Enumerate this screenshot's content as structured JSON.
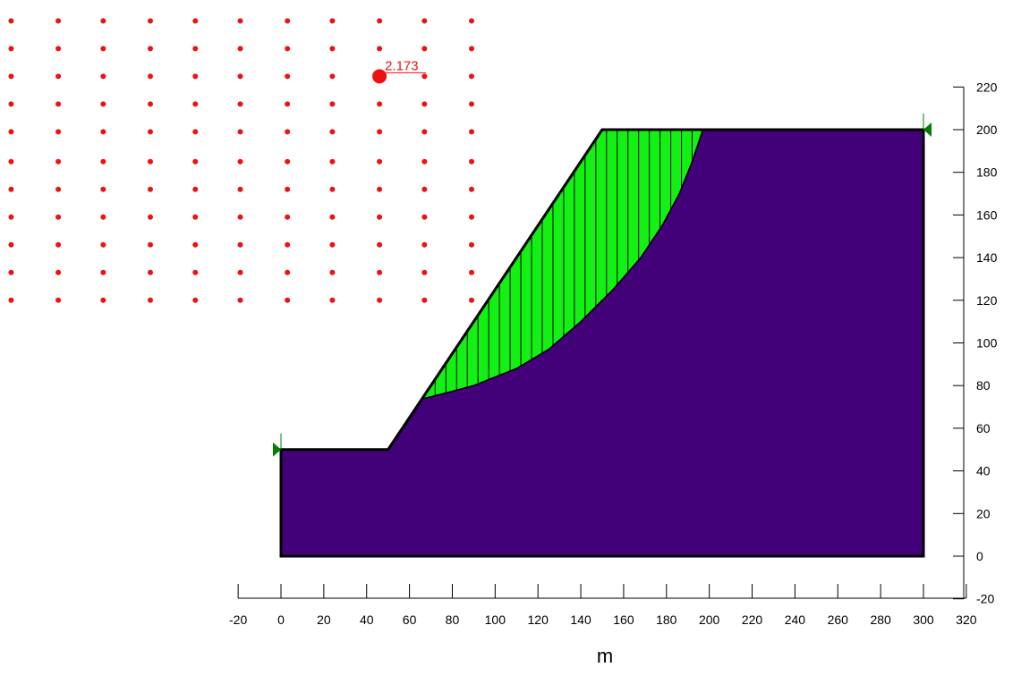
{
  "viewer": {
    "x_axis": {
      "label": "m",
      "ticks": [
        -20,
        0,
        20,
        40,
        60,
        80,
        100,
        120,
        140,
        160,
        180,
        200,
        220,
        240,
        260,
        280,
        300,
        320
      ]
    },
    "y_axis": {
      "ticks": [
        -20,
        0,
        20,
        40,
        60,
        80,
        100,
        120,
        140,
        160,
        180,
        200,
        220
      ]
    },
    "slope_profile": [
      [
        0,
        0
      ],
      [
        300,
        0
      ],
      [
        300,
        200
      ],
      [
        150,
        200
      ],
      [
        50,
        50
      ],
      [
        0,
        50
      ]
    ],
    "slip_surface": [
      [
        67,
        74
      ],
      [
        75,
        76
      ],
      [
        90,
        80
      ],
      [
        110,
        88
      ],
      [
        125,
        97
      ],
      [
        140,
        110
      ],
      [
        155,
        125
      ],
      [
        168,
        140
      ],
      [
        178,
        155
      ],
      [
        186,
        170
      ],
      [
        192,
        185
      ],
      [
        197,
        200
      ]
    ],
    "slice_count": 26,
    "grid_centers": {
      "columns": [
        -126,
        -104,
        -83,
        -61,
        -40,
        -19,
        3,
        24,
        46,
        67,
        89
      ],
      "rows": [
        251,
        238,
        225,
        212,
        199,
        185,
        172,
        159,
        146,
        133,
        120
      ]
    },
    "critical_center": {
      "x": 46,
      "y": 225,
      "factor_of_safety_label": "2.173"
    },
    "colors": {
      "soil": "#420079",
      "slide_mass": "#14f014",
      "grid_points": "#ee1111",
      "boundary_flag": "#008000"
    }
  }
}
